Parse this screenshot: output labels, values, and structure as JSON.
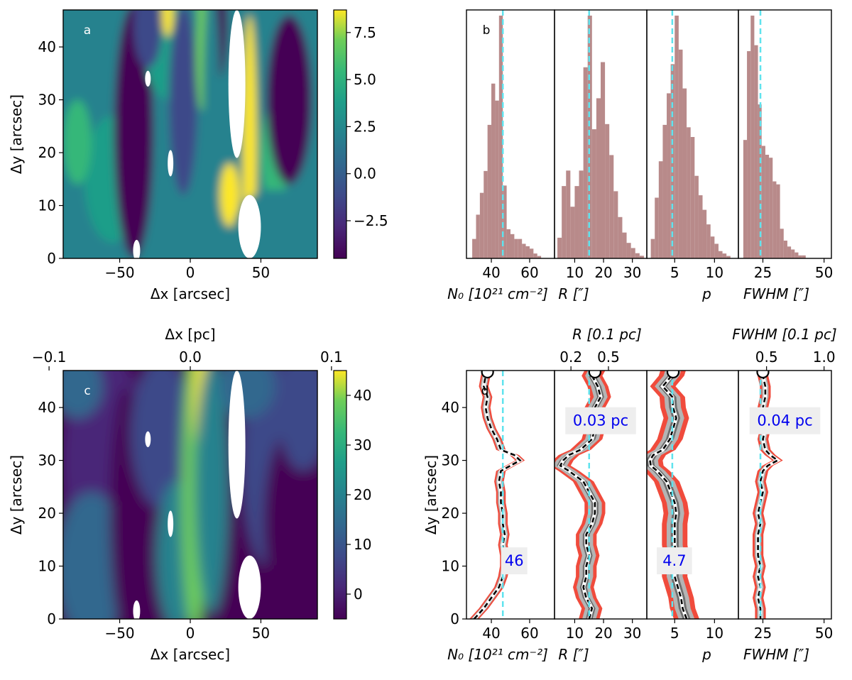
{
  "chart_data": [
    {
      "panel": "a",
      "type": "heatmap",
      "panel_label": "a",
      "xlabel": "Δx [arcsec]",
      "ylabel": "Δy [arcsec]",
      "xlim": [
        -90,
        90
      ],
      "ylim": [
        0,
        47
      ],
      "xticks": [
        -50,
        0,
        50
      ],
      "yticks": [
        0,
        10,
        20,
        30,
        40
      ],
      "colormap": "viridis",
      "colorbar": {
        "min": -4.5,
        "max": 8.7,
        "ticks": [
          -2.5,
          0.0,
          2.5,
          5.0,
          7.5
        ],
        "tick_labels": [
          "−2.5",
          "0.0",
          "2.5",
          "5.0",
          "7.5"
        ]
      },
      "masked_regions": [
        {
          "x": 33,
          "y": 33,
          "rx": 6,
          "ry": 14
        },
        {
          "x": 42,
          "y": 6,
          "rx": 8,
          "ry": 6
        },
        {
          "x": -30,
          "y": 34,
          "rx": 2,
          "ry": 1.5
        },
        {
          "x": -14,
          "y": 18,
          "rx": 2,
          "ry": 2.5
        },
        {
          "x": -38,
          "y": 1.5,
          "rx": 2.5,
          "ry": 2
        }
      ]
    },
    {
      "panel": "b",
      "type": "histogram",
      "panel_label": "b",
      "subplots": [
        {
          "name": "N0",
          "xlabel": "N₀ [10²¹ cm⁻²]",
          "xlim": [
            27,
            73
          ],
          "xticks": [
            40,
            60
          ],
          "median": 46,
          "bin_edges": [
            30,
            32,
            34,
            36,
            38,
            40,
            42,
            44,
            46,
            48,
            50,
            52,
            54,
            56,
            58,
            60,
            62,
            64,
            66,
            68,
            70
          ],
          "counts": [
            8,
            18,
            27,
            36,
            55,
            72,
            65,
            100,
            30,
            12,
            10,
            8,
            8,
            6,
            5,
            4,
            2,
            1,
            0,
            0
          ]
        },
        {
          "name": "R",
          "xlabel": "R [″]",
          "xlim": [
            3,
            35
          ],
          "xticks": [
            10,
            20,
            30
          ],
          "median": 15,
          "bin_edges": [
            4,
            5.5,
            7,
            8.5,
            10,
            11.5,
            13,
            14.5,
            16,
            17.5,
            19,
            20.5,
            22,
            23.5,
            25,
            26.5,
            28,
            29.5,
            31,
            32.5,
            34
          ],
          "counts": [
            8,
            28,
            34,
            20,
            28,
            34,
            74,
            94,
            50,
            62,
            76,
            52,
            40,
            26,
            16,
            10,
            6,
            4,
            2,
            1
          ]
        },
        {
          "name": "p",
          "xlabel": "p",
          "xlim": [
            1.5,
            13
          ],
          "xticks": [
            5,
            10
          ],
          "median": 4.7,
          "bin_edges": [
            2,
            2.5,
            3,
            3.5,
            4,
            4.5,
            5,
            5.5,
            6,
            6.5,
            7,
            7.5,
            8,
            8.5,
            9,
            9.5,
            10,
            10.5,
            11,
            11.5,
            12
          ],
          "counts": [
            8,
            25,
            40,
            55,
            68,
            80,
            100,
            86,
            70,
            54,
            50,
            34,
            26,
            20,
            14,
            9,
            6,
            3,
            2,
            1
          ]
        },
        {
          "name": "FWHM",
          "xlabel": "FWHM [″]",
          "xlim": [
            15,
            53
          ],
          "xticks": [
            25,
            50
          ],
          "median": 24,
          "bin_edges": [
            17,
            18.5,
            20,
            21.5,
            23,
            24.5,
            26,
            27.5,
            29,
            30.5,
            32,
            33.5,
            35,
            36.5,
            38,
            39.5,
            41,
            42.5,
            44,
            45.5,
            47
          ],
          "counts": [
            40,
            70,
            82,
            72,
            52,
            38,
            35,
            34,
            26,
            25,
            10,
            6,
            4,
            3,
            2,
            1,
            1,
            0,
            0,
            0
          ]
        }
      ]
    },
    {
      "panel": "c",
      "type": "heatmap",
      "panel_label": "c",
      "xlabel": "Δx [arcsec]",
      "ylabel": "Δy [arcsec]",
      "top_xlabel": "Δx [pc]",
      "top_xticks": [
        -0.1,
        0.0,
        0.1
      ],
      "top_xtick_labels": [
        "−0.1",
        "0.0",
        "0.1"
      ],
      "xlim": [
        -90,
        90
      ],
      "ylim": [
        0,
        47
      ],
      "xticks": [
        -50,
        0,
        50
      ],
      "yticks": [
        0,
        10,
        20,
        30,
        40
      ],
      "colormap": "viridis",
      "colorbar": {
        "min": -5,
        "max": 45,
        "ticks": [
          0,
          10,
          20,
          30,
          40
        ],
        "tick_labels": [
          "0",
          "10",
          "20",
          "30",
          "40"
        ]
      },
      "masked_regions": [
        {
          "x": 33,
          "y": 33,
          "rx": 6,
          "ry": 14
        },
        {
          "x": 42,
          "y": 6,
          "rx": 8,
          "ry": 6
        },
        {
          "x": -30,
          "y": 34,
          "rx": 2,
          "ry": 1.5
        },
        {
          "x": -14,
          "y": 18,
          "rx": 2,
          "ry": 2.5
        },
        {
          "x": -38,
          "y": 1.5,
          "rx": 2.5,
          "ry": 2
        }
      ]
    },
    {
      "panel": "d",
      "type": "line",
      "panel_label": "d",
      "ylabel": "Δy [arcsec]",
      "ylim": [
        0,
        47
      ],
      "yticks": [
        0,
        10,
        20,
        30,
        40
      ],
      "y": [
        0,
        2,
        4,
        6,
        8,
        10,
        12,
        14,
        16,
        18,
        20,
        22,
        24,
        26,
        28,
        29,
        30,
        31,
        32,
        34,
        36,
        38,
        40,
        42,
        44,
        46,
        47
      ],
      "subplots": [
        {
          "name": "N0",
          "xlabel": "N₀ [10²¹ cm⁻²]",
          "xlim": [
            27,
            73
          ],
          "xticks": [
            40,
            60
          ],
          "median": 46,
          "median_label": "46",
          "values": [
            31,
            36,
            40,
            44,
            46,
            47,
            47,
            46,
            47,
            46,
            46,
            45,
            45,
            44,
            45,
            50,
            55,
            52,
            45,
            43,
            40,
            38,
            37,
            38,
            36,
            37,
            38
          ],
          "bands": [
            0.8,
            1.6,
            2.5
          ]
        },
        {
          "name": "R",
          "xlabel": "R [″]",
          "xlim": [
            3,
            35
          ],
          "xticks": [
            10,
            20,
            30
          ],
          "median": 15,
          "median_label": "0.03 pc",
          "top_xlabel": "R [0.1 pc]",
          "top_xticks_data": [
            8.7,
            21.7
          ],
          "top_xtick_labels": [
            "0.2",
            "0.5"
          ],
          "values": [
            15,
            16,
            14,
            13,
            14,
            14,
            15,
            14,
            14,
            16,
            17,
            17,
            15,
            13,
            8,
            5,
            6,
            8,
            12,
            16,
            17,
            19,
            17,
            19,
            18,
            16,
            17
          ],
          "bands": [
            1.2,
            2.4,
            3.6
          ]
        },
        {
          "name": "p",
          "xlabel": "p",
          "xlim": [
            1.5,
            13
          ],
          "xticks": [
            5,
            10
          ],
          "median": 4.7,
          "median_label": "4.7",
          "values": [
            6.5,
            6.0,
            5.8,
            5.4,
            5.0,
            5.0,
            5.2,
            5.0,
            5.0,
            5.0,
            5.2,
            5.0,
            4.5,
            4.0,
            2.8,
            2.0,
            1.9,
            2.3,
            3.5,
            4.4,
            4.8,
            5.2,
            4.8,
            4.7,
            3.5,
            4.6,
            4.8
          ],
          "bands": [
            0.5,
            1.0,
            1.6
          ]
        },
        {
          "name": "FWHM",
          "xlabel": "FWHM [″]",
          "xlim": [
            15,
            53
          ],
          "xticks": [
            25,
            50
          ],
          "median": 24,
          "median_label": "0.04 pc",
          "top_xlabel": "FWHM [0.1 pc]",
          "top_xticks_data": [
            26.5,
            50
          ],
          "top_xtick_labels": [
            "0.5",
            "1.0"
          ],
          "values": [
            24,
            24,
            23,
            24,
            23,
            24,
            23,
            23,
            23,
            24,
            23,
            24,
            25,
            24,
            25,
            27,
            31,
            28,
            26,
            25,
            26,
            25,
            25,
            26,
            26,
            25,
            25
          ],
          "bands": [
            0.6,
            1.3,
            2.2
          ]
        }
      ]
    }
  ],
  "colors": {
    "hist_fill": "#b88a8a",
    "median_line": "#5fe3ee",
    "band_outer": "#6e6e6e",
    "band_mid": "#b4b4b4",
    "band_inner": "#f04b3c",
    "label_text": "#0000ee",
    "label_box": "#eeeeee"
  }
}
